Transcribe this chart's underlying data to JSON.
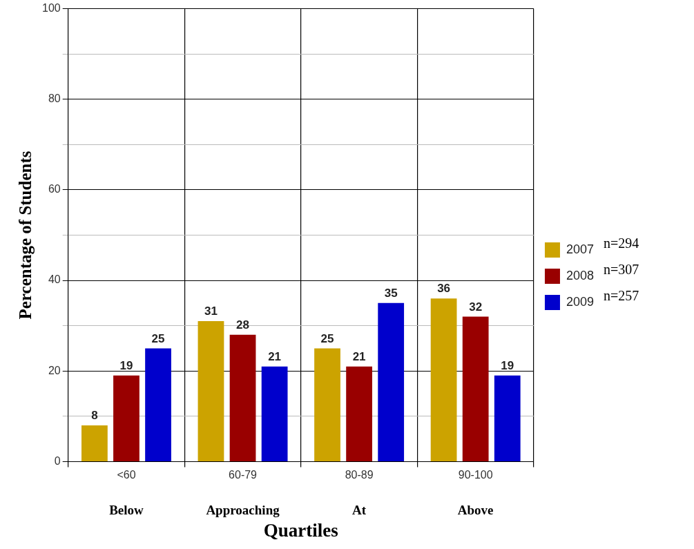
{
  "chart_data": {
    "type": "bar",
    "xlabel": "Quartiles",
    "ylabel": "Percentage of Students",
    "categories": [
      "<60",
      "60-79",
      "80-89",
      "90-100"
    ],
    "series": [
      {
        "name": "2007",
        "color": "#cca300",
        "values": [
          8,
          31,
          25,
          36
        ]
      },
      {
        "name": "2008",
        "color": "#990000",
        "values": [
          19,
          28,
          21,
          32
        ]
      },
      {
        "name": "2009",
        "color": "#0000cc",
        "values": [
          25,
          21,
          35,
          19
        ]
      }
    ],
    "ylim": [
      0,
      100
    ],
    "yticks": [
      0,
      {
        "value": 10,
        "label": null
      },
      20,
      {
        "value": 30,
        "label": null
      },
      40,
      {
        "value": 50,
        "label": null
      },
      60,
      {
        "value": 70,
        "label": null
      },
      80,
      {
        "value": 90,
        "label": null
      },
      100
    ],
    "grid": true,
    "legend": "right",
    "data_labels": true,
    "annotations": [
      "Below",
      "Approaching",
      "At",
      "Above",
      "n=294",
      "n=307",
      "n=257"
    ]
  }
}
